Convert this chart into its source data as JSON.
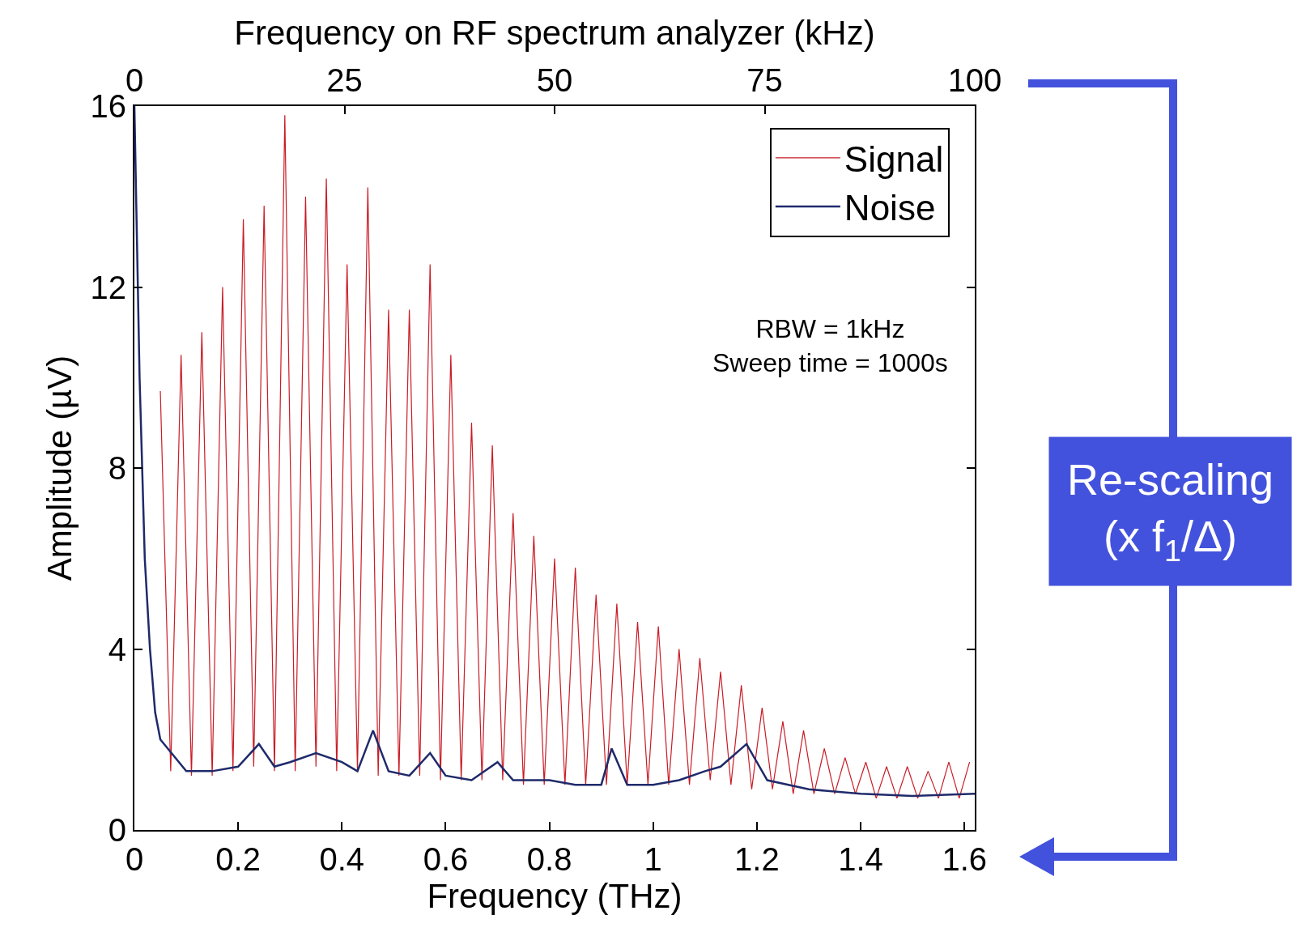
{
  "chart_data": {
    "type": "line",
    "xlabel": "Frequency (THz)",
    "x2label": "Frequency on RF spectrum analyzer (kHz)",
    "ylabel": "Amplitude (µV)",
    "xlim": [
      0,
      1.62
    ],
    "xticks": [
      0,
      0.2,
      0.4,
      0.6,
      0.8,
      1,
      1.2,
      1.4,
      1.6
    ],
    "x2lim": [
      0,
      100
    ],
    "x2ticks": [
      0,
      25,
      50,
      75,
      100
    ],
    "ylim": [
      0,
      16
    ],
    "yticks": [
      0,
      4,
      8,
      12,
      16
    ],
    "grid": false,
    "legend": "top right",
    "marker": "none",
    "line_style": "solid",
    "annotations": [
      "RBW = 1kHz",
      "Sweep time = 1000s",
      "Re-scaling\n(x f$_{1}$/Δ)"
    ],
    "series": [
      {
        "name": "Signal",
        "color": "#c91c26",
        "x": [
          0.05,
          0.07,
          0.09,
          0.11,
          0.13,
          0.15,
          0.17,
          0.19,
          0.21,
          0.23,
          0.25,
          0.27,
          0.29,
          0.31,
          0.33,
          0.35,
          0.37,
          0.39,
          0.41,
          0.43,
          0.45,
          0.47,
          0.49,
          0.51,
          0.53,
          0.55,
          0.57,
          0.59,
          0.61,
          0.63,
          0.65,
          0.67,
          0.69,
          0.71,
          0.73,
          0.75,
          0.77,
          0.79,
          0.81,
          0.83,
          0.85,
          0.87,
          0.89,
          0.91,
          0.93,
          0.95,
          0.97,
          0.99,
          1.01,
          1.03,
          1.05,
          1.07,
          1.09,
          1.11,
          1.13,
          1.15,
          1.17,
          1.19,
          1.21,
          1.23,
          1.25,
          1.27,
          1.29,
          1.31,
          1.33,
          1.35,
          1.37,
          1.39,
          1.41,
          1.43,
          1.45,
          1.47,
          1.49,
          1.51,
          1.53,
          1.55,
          1.57,
          1.59,
          1.61
        ],
        "values": [
          9.7,
          1.3,
          10.5,
          1.2,
          11,
          1.2,
          12,
          1.3,
          13.5,
          1.4,
          13.8,
          1.3,
          15.8,
          1.3,
          14,
          1.4,
          14.4,
          1.3,
          12.5,
          1.3,
          14.2,
          1.2,
          11.5,
          1.2,
          11.5,
          1.2,
          12.5,
          1.1,
          10.5,
          1.1,
          9,
          1.1,
          8.5,
          1.1,
          7,
          1.0,
          6.5,
          1.0,
          6,
          1.0,
          5.8,
          1.0,
          5.2,
          1.0,
          5,
          1.0,
          4.6,
          1.0,
          4.5,
          1.0,
          4,
          1.0,
          3.8,
          1.1,
          3.5,
          1.0,
          3.2,
          0.9,
          2.7,
          0.9,
          2.4,
          0.8,
          2.2,
          0.8,
          1.8,
          0.8,
          1.6,
          0.8,
          1.5,
          0.7,
          1.4,
          0.7,
          1.4,
          0.7,
          1.3,
          0.7,
          1.5,
          0.7,
          1.5
        ]
      },
      {
        "name": "Noise",
        "color": "#1f2a6b",
        "x": [
          0,
          0.01,
          0.02,
          0.03,
          0.04,
          0.05,
          0.1,
          0.15,
          0.2,
          0.24,
          0.27,
          0.3,
          0.35,
          0.4,
          0.43,
          0.46,
          0.49,
          0.53,
          0.57,
          0.6,
          0.65,
          0.7,
          0.73,
          0.8,
          0.85,
          0.9,
          0.92,
          0.95,
          1.0,
          1.05,
          1.1,
          1.13,
          1.18,
          1.22,
          1.3,
          1.4,
          1.5,
          1.62
        ],
        "values": [
          16,
          10,
          6,
          4,
          2.6,
          2.0,
          1.3,
          1.3,
          1.4,
          1.9,
          1.4,
          1.5,
          1.7,
          1.5,
          1.3,
          2.2,
          1.3,
          1.2,
          1.7,
          1.2,
          1.1,
          1.5,
          1.1,
          1.1,
          1.0,
          1.0,
          1.8,
          1.0,
          1.0,
          1.1,
          1.3,
          1.4,
          1.9,
          1.1,
          0.9,
          0.8,
          0.75,
          0.8
        ]
      }
    ]
  }
}
